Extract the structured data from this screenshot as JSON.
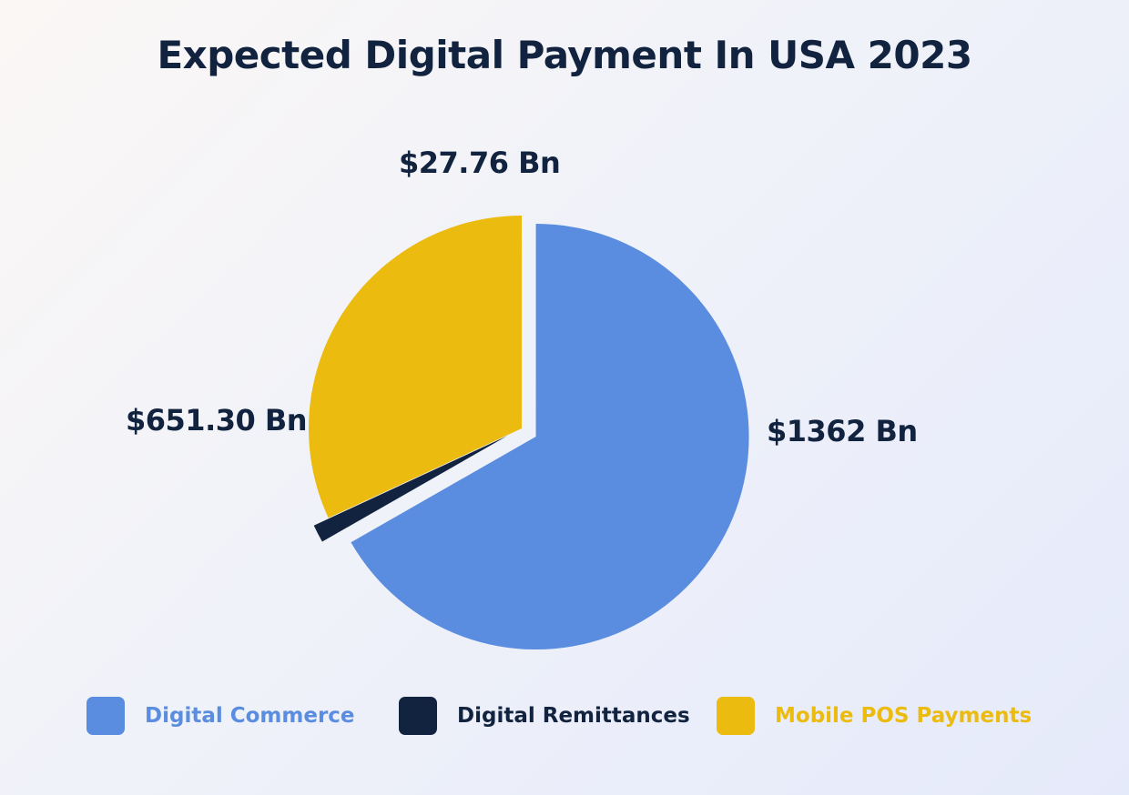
{
  "chart_data": {
    "type": "pie",
    "title": "Expected Digital Payment In USA 2023",
    "categories": [
      "Digital Commerce",
      "Digital Remittances",
      "Mobile POS Payments"
    ],
    "values": [
      1362,
      27.76,
      651.3
    ],
    "data_labels": [
      "$1362 Bn",
      "$27.76 Bn",
      "$651.30 Bn"
    ],
    "colors": [
      "#5a8ddf",
      "#12233f",
      "#ecbb10"
    ],
    "exploded": [
      "Digital Commerce",
      "Digital Remittances"
    ],
    "legend_position": "bottom"
  },
  "legend": {
    "items": [
      {
        "label": "Digital Commerce",
        "color": "#5a8ddf"
      },
      {
        "label": "Digital Remittances",
        "color": "#12233f"
      },
      {
        "label": "Mobile POS Payments",
        "color": "#ecbb10"
      }
    ]
  }
}
